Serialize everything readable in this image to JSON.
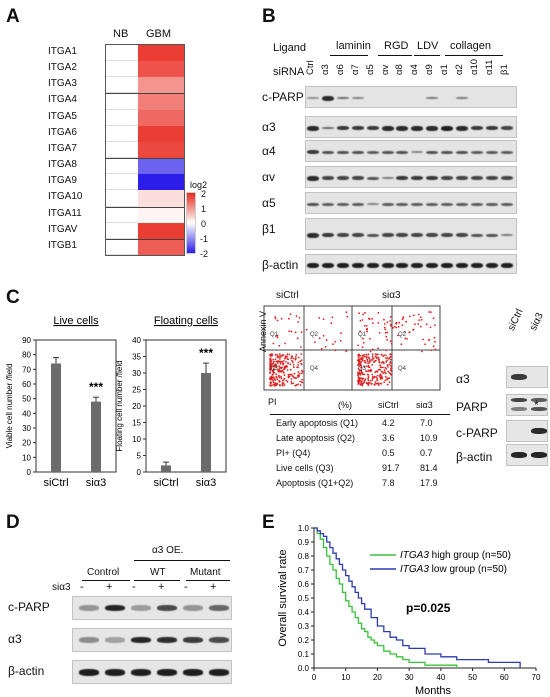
{
  "panelA": {
    "label": "A",
    "cols": [
      "NB",
      "GBM"
    ],
    "rows": [
      "ITGA1",
      "ITGA2",
      "ITGA3",
      "ITGA4",
      "ITGA5",
      "ITGA6",
      "ITGA7",
      "ITGA8",
      "ITGA9",
      "ITGA10",
      "ITGA11",
      "ITGAV",
      "ITGB1"
    ],
    "gbm_log2": [
      1.8,
      1.6,
      1.0,
      1.2,
      1.4,
      1.8,
      1.7,
      -1.4,
      -2.0,
      0.3,
      0.1,
      1.8,
      1.5
    ],
    "legend_title": "log2",
    "legend_ticks": [
      "2",
      "1",
      "0",
      "-1",
      "-2"
    ],
    "colors": {
      "high": "#e8281e",
      "mid": "#ffffff",
      "low": "#2b1ee8"
    }
  },
  "panelB": {
    "label": "B",
    "ligand_label": "Ligand",
    "sirna_label": "siRNA",
    "ligand_groups": [
      "laminin",
      "RGD",
      "LDV",
      "collagen"
    ],
    "lanes": [
      "Ctrl",
      "α3",
      "α6",
      "α7",
      "α5",
      "αv",
      "α8",
      "α4",
      "α9",
      "α1",
      "α2",
      "α10",
      "α11",
      "β1"
    ],
    "blots": [
      "c-PARP",
      "α3",
      "α4",
      "αv",
      "α5",
      "β1",
      "β-actin"
    ]
  },
  "panelC": {
    "label": "C",
    "live": {
      "title": "Live cells",
      "ylabel": "Viable cell number /field",
      "yticks": [
        "0",
        "10",
        "20",
        "30",
        "40",
        "50",
        "60",
        "70",
        "80",
        "90"
      ],
      "categories": [
        "siCtrl",
        "siα3"
      ],
      "sig": "***"
    },
    "floating": {
      "title": "Floating cells",
      "ylabel": "Floating cell number /field",
      "yticks": [
        "0",
        "5",
        "10",
        "15",
        "20",
        "25",
        "30",
        "35",
        "40"
      ],
      "categories": [
        "siCtrl",
        "siα3"
      ],
      "sig": "***"
    },
    "flow": {
      "titles": [
        "siCtrl",
        "siα3"
      ],
      "yaxis": "Annexin V",
      "xaxis": "PI",
      "quadrants": [
        "Q1",
        "Q2",
        "Q3",
        "Q4"
      ]
    },
    "table": {
      "headers": [
        "(%)",
        "siCtrl",
        "siα3"
      ],
      "rows": [
        [
          "Early apoptosis (Q1)",
          "4.2",
          "7.0"
        ],
        [
          "Late apoptosis (Q2)",
          "3.6",
          "10.9"
        ],
        [
          "PI+ (Q4)",
          "0.5",
          "0.7"
        ],
        [
          "Live cells (Q3)",
          "91.7",
          "81.4"
        ],
        [
          "Apoptosis (Q1+Q2)",
          "7.8",
          "17.9"
        ]
      ]
    },
    "wb": {
      "lanes": [
        "siCtrl",
        "siα3"
      ],
      "rows": [
        "α3",
        "PARP",
        "c-PARP",
        "β-actin"
      ],
      "star": "*"
    }
  },
  "panelD": {
    "label": "D",
    "oe_label": "α3 OE.",
    "groups": [
      "Control",
      "WT",
      "Mutant"
    ],
    "si_label": "siα3",
    "signs": [
      "-",
      "+",
      "-",
      "+",
      "-",
      "+"
    ],
    "rows": [
      "c-PARP",
      "α3",
      "β-actin"
    ]
  },
  "panelE": {
    "label": "E",
    "ylabel": "Overall survival rate",
    "xlabel": "Months",
    "yticks": [
      "0.0",
      "0.1",
      "0.2",
      "0.3",
      "0.4",
      "0.5",
      "0.6",
      "0.7",
      "0.8",
      "0.9",
      "1.0"
    ],
    "xticks": [
      "0",
      "10",
      "20",
      "30",
      "40",
      "50",
      "60",
      "70"
    ],
    "legend": [
      {
        "gene": "ITGA3",
        "text": " high group (n=50)",
        "color": "#39c23b"
      },
      {
        "gene": "ITGA3",
        "text": " low group (n=50)",
        "color": "#2c3cb0"
      }
    ],
    "pvalue": "p=0.025"
  },
  "chart_data": [
    {
      "type": "heatmap",
      "title": "",
      "categories": [
        "ITGA1",
        "ITGA2",
        "ITGA3",
        "ITGA4",
        "ITGA5",
        "ITGA6",
        "ITGA7",
        "ITGA8",
        "ITGA9",
        "ITGA10",
        "ITGA11",
        "ITGAV",
        "ITGB1"
      ],
      "series": [
        {
          "name": "NB",
          "values": [
            0,
            0,
            0,
            0,
            0,
            0,
            0,
            0,
            0,
            0,
            0,
            0,
            0
          ]
        },
        {
          "name": "GBM",
          "values": [
            1.8,
            1.6,
            1.0,
            1.2,
            1.4,
            1.8,
            1.7,
            -1.4,
            -2.0,
            0.3,
            0.1,
            1.8,
            1.5
          ]
        }
      ],
      "legend_title": "log2",
      "value_range": [
        -2,
        2
      ]
    },
    {
      "type": "bar",
      "title": "Live cells",
      "categories": [
        "siCtrl",
        "siα3"
      ],
      "values": [
        74,
        48
      ],
      "errors": [
        4,
        3
      ],
      "ylabel": "Viable cell number /field",
      "ylim": [
        0,
        90
      ]
    },
    {
      "type": "bar",
      "title": "Floating cells",
      "categories": [
        "siCtrl",
        "siα3"
      ],
      "values": [
        2,
        30
      ],
      "errors": [
        1,
        3
      ],
      "ylabel": "Floating cell number /field",
      "ylim": [
        0,
        40
      ]
    },
    {
      "type": "line",
      "title": "",
      "xlabel": "Months",
      "ylabel": "Overall survival rate",
      "xlim": [
        0,
        70
      ],
      "ylim": [
        0,
        1
      ],
      "series": [
        {
          "name": "ITGA3 high group (n=50)",
          "x": [
            0,
            1,
            2,
            3,
            4,
            5,
            6,
            7,
            8,
            9,
            10,
            11,
            12,
            13,
            14,
            15,
            16,
            17,
            18,
            19,
            20,
            22,
            24,
            26,
            28,
            30,
            35,
            40,
            45
          ],
          "y": [
            1.0,
            0.96,
            0.92,
            0.86,
            0.8,
            0.74,
            0.7,
            0.64,
            0.6,
            0.54,
            0.48,
            0.44,
            0.4,
            0.36,
            0.32,
            0.28,
            0.26,
            0.22,
            0.2,
            0.18,
            0.16,
            0.12,
            0.1,
            0.08,
            0.06,
            0.04,
            0.02,
            0.02,
            0.0
          ]
        },
        {
          "name": "ITGA3 low group (n=50)",
          "x": [
            0,
            1,
            2,
            3,
            4,
            5,
            6,
            7,
            8,
            9,
            10,
            11,
            12,
            13,
            14,
            15,
            16,
            18,
            20,
            22,
            24,
            26,
            28,
            30,
            35,
            40,
            45,
            50,
            55,
            60,
            65
          ],
          "y": [
            1.0,
            0.98,
            0.96,
            0.94,
            0.9,
            0.86,
            0.82,
            0.78,
            0.74,
            0.7,
            0.66,
            0.62,
            0.58,
            0.54,
            0.5,
            0.46,
            0.42,
            0.36,
            0.3,
            0.26,
            0.22,
            0.2,
            0.16,
            0.14,
            0.1,
            0.08,
            0.06,
            0.06,
            0.04,
            0.04,
            0.0
          ]
        }
      ]
    }
  ]
}
